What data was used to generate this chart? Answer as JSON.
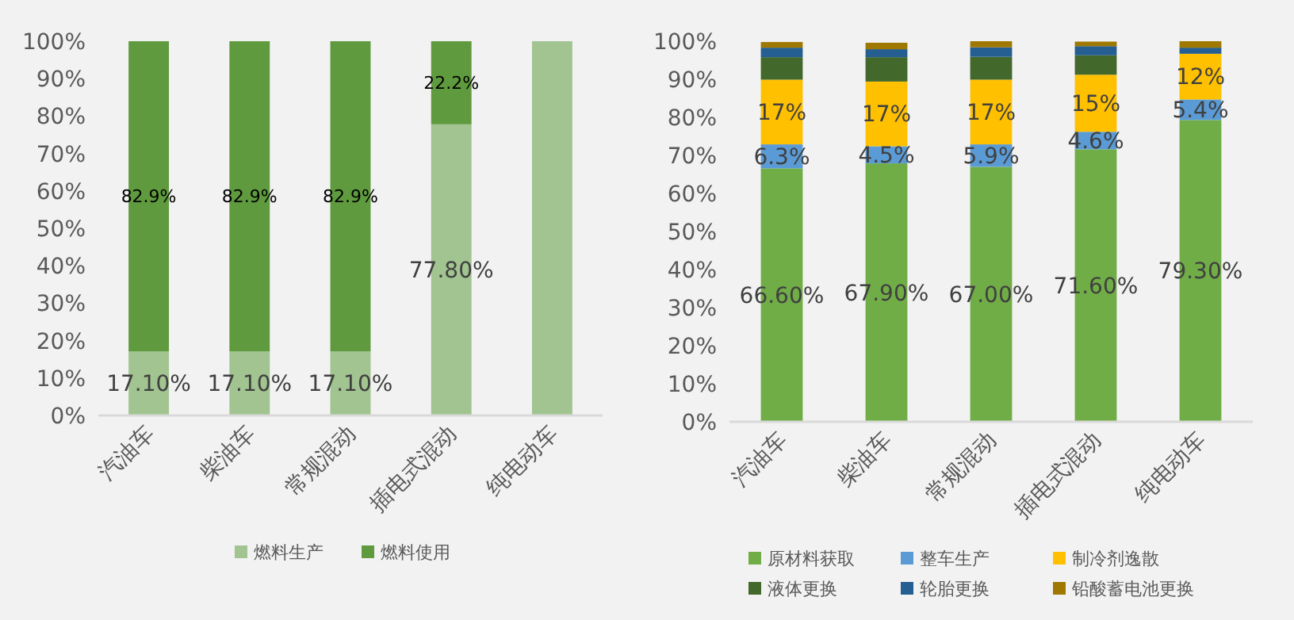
{
  "chart_data": [
    {
      "type": "bar",
      "stacked": true,
      "legend": "bottom",
      "categories": [
        "汽油车",
        "柴油车",
        "常规混动",
        "插电式混动",
        "纯电动车"
      ],
      "ylim": [
        0,
        100
      ],
      "yticks": [
        {
          "value": 0,
          "label": "0%"
        },
        {
          "value": 10,
          "label": "10%"
        },
        {
          "value": 20,
          "label": "20%"
        },
        {
          "value": 30,
          "label": "30%"
        },
        {
          "value": 40,
          "label": "40%"
        },
        {
          "value": 50,
          "label": "50%"
        },
        {
          "value": 60,
          "label": "60%"
        },
        {
          "value": 70,
          "label": "70%"
        },
        {
          "value": 80,
          "label": "80%"
        },
        {
          "value": 90,
          "label": "90%"
        },
        {
          "value": 100,
          "label": "100%"
        }
      ],
      "series": [
        {
          "name": "燃料生产",
          "color": "#a1c490",
          "values": [
            17.1,
            17.1,
            17.1,
            77.8,
            100
          ],
          "value_labels": [
            "17.10%",
            "17.10%",
            "17.10%",
            "77.80%",
            null
          ]
        },
        {
          "name": "燃料使用",
          "color": "#5f9a3e",
          "values": [
            82.9,
            82.9,
            82.9,
            22.2,
            0
          ],
          "value_labels": [
            "82.9%",
            "82.9%",
            "82.9%",
            "22.2%",
            null
          ]
        }
      ]
    },
    {
      "type": "bar",
      "stacked": true,
      "legend": "bottom",
      "categories": [
        "汽油车",
        "柴油车",
        "常规混动",
        "插电式混动",
        "纯电动车"
      ],
      "ylim": [
        0,
        100
      ],
      "yticks": [
        {
          "value": 0,
          "label": "0%"
        },
        {
          "value": 10,
          "label": "10%"
        },
        {
          "value": 20,
          "label": "20%"
        },
        {
          "value": 30,
          "label": "30%"
        },
        {
          "value": 40,
          "label": "40%"
        },
        {
          "value": 50,
          "label": "50%"
        },
        {
          "value": 60,
          "label": "60%"
        },
        {
          "value": 70,
          "label": "70%"
        },
        {
          "value": 80,
          "label": "80%"
        },
        {
          "value": 90,
          "label": "90%"
        },
        {
          "value": 100,
          "label": "100%"
        }
      ],
      "series": [
        {
          "name": "原材料获取",
          "color": "#70ad47",
          "values": [
            66.6,
            67.9,
            67.0,
            71.6,
            79.3
          ],
          "value_labels": [
            "66.60%",
            "67.90%",
            "67.00%",
            "71.60%",
            "79.30%"
          ]
        },
        {
          "name": "整车生产",
          "color": "#5b9bd5",
          "values": [
            6.3,
            4.5,
            5.9,
            4.6,
            5.4
          ],
          "value_labels": [
            "6.3%",
            "4.5%",
            "5.9%",
            "4.6%",
            "5.4%"
          ]
        },
        {
          "name": "制冷剂逸散",
          "color": "#ffc000",
          "values": [
            17,
            17,
            17,
            15,
            12
          ],
          "value_labels": [
            "17%",
            "17%",
            "17%",
            "15%",
            "12%"
          ]
        },
        {
          "name": "液体更换",
          "color": "#43682b",
          "values": [
            5.9,
            6.4,
            6.0,
            5.1,
            0
          ]
        },
        {
          "name": "轮胎更换",
          "color": "#255e91",
          "values": [
            2.5,
            2.1,
            2.5,
            2.4,
            1.6
          ]
        },
        {
          "name": "铅酸蓄电池更换",
          "color": "#9e7800",
          "values": [
            1.5,
            1.7,
            1.6,
            1.2,
            1.7
          ]
        }
      ]
    }
  ]
}
